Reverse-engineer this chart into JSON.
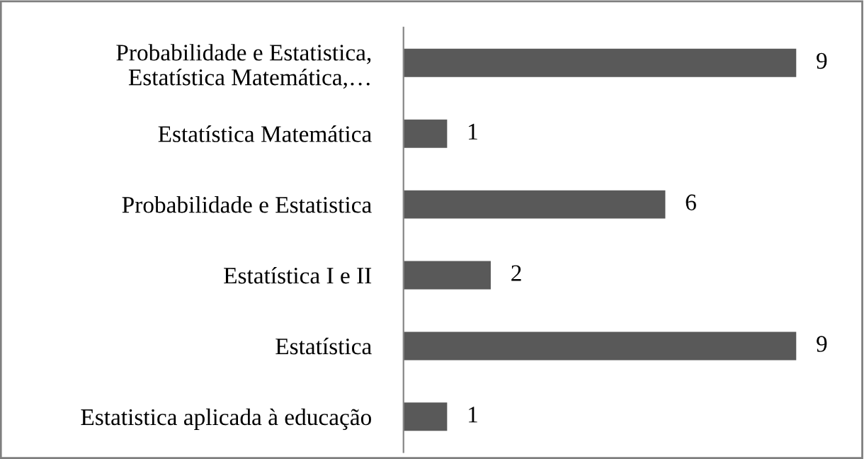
{
  "chart_data": {
    "type": "bar",
    "orientation": "horizontal",
    "categories": [
      "Probabilidade e Estatistica,\nEstatística Matemática,…",
      "Estatística Matemática",
      "Probabilidade e Estatistica",
      "Estatística I e II",
      "Estatística",
      "Estatistica aplicada à educação"
    ],
    "values": [
      9,
      1,
      6,
      2,
      9,
      1
    ],
    "color": "#595959",
    "data_labels": true,
    "grid": false,
    "legend": false
  }
}
